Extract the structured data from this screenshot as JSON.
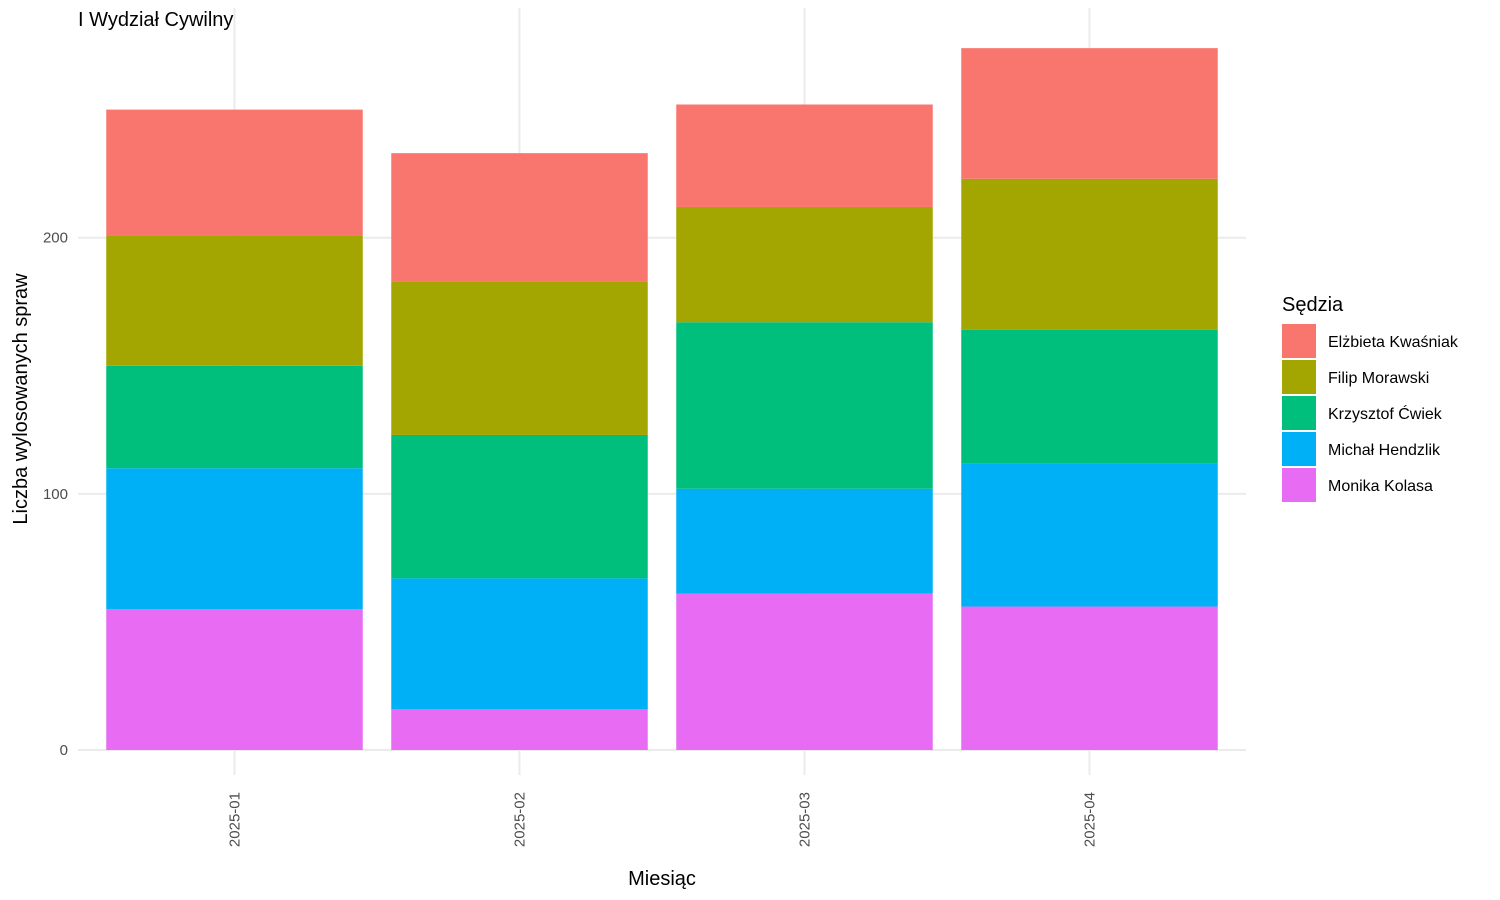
{
  "chart_data": {
    "type": "bar",
    "stacked": true,
    "title": "I Wydział Cywilny",
    "xlabel": "Miesiąc",
    "ylabel": "Liczba wylosowanych spraw",
    "categories": [
      "2025-01",
      "2025-02",
      "2025-03",
      "2025-04"
    ],
    "yticks": [
      0,
      100,
      200
    ],
    "ylim": [
      0,
      280
    ],
    "grid": true,
    "legend": {
      "title": "Sędzia",
      "position": "right"
    },
    "series": [
      {
        "name": "Monika Kolasa",
        "color": "#E76BF3",
        "values": [
          55,
          16,
          61,
          56
        ]
      },
      {
        "name": "Michał Hendzlik",
        "color": "#00B0F6",
        "values": [
          55,
          51,
          41,
          56
        ]
      },
      {
        "name": "Krzysztof Ćwiek",
        "color": "#00BF7D",
        "values": [
          40,
          56,
          65,
          52
        ]
      },
      {
        "name": "Filip Morawski",
        "color": "#A3A500",
        "values": [
          51,
          60,
          45,
          59
        ]
      },
      {
        "name": "Elżbieta Kwaśniak",
        "color": "#F8766D",
        "values": [
          49,
          50,
          40,
          51
        ]
      }
    ],
    "legend_order": [
      "Elżbieta Kwaśniak",
      "Filip Morawski",
      "Krzysztof Ćwiek",
      "Michał Hendzlik",
      "Monika Kolasa"
    ]
  }
}
